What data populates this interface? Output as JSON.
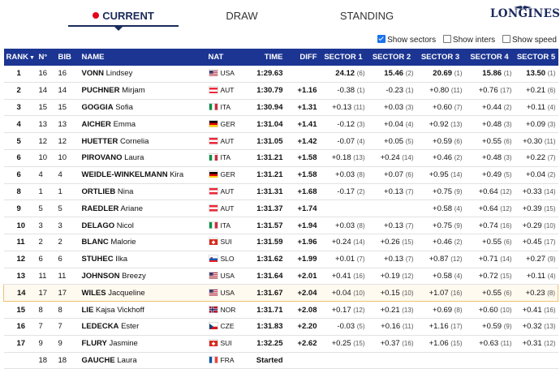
{
  "tabs": [
    {
      "label": "CURRENT",
      "active": true
    },
    {
      "label": "DRAW",
      "active": false
    },
    {
      "label": "STANDING",
      "active": false
    }
  ],
  "logo": "LONGINES",
  "options": {
    "show_sectors": {
      "label": "Show sectors",
      "checked": true
    },
    "show_inters": {
      "label": "Show inters",
      "checked": false
    },
    "show_speed": {
      "label": "Show speed",
      "checked": false
    }
  },
  "columns": [
    "RANK",
    "N°",
    "BIB",
    "NAME",
    "NAT",
    "TIME",
    "DIFF",
    "SECTOR 1",
    "SECTOR 2",
    "SECTOR 3",
    "SECTOR 4",
    "SECTOR 5"
  ],
  "rank_sort_icon": "caret-down-icon",
  "rows": [
    {
      "rank": "1",
      "n": "16",
      "bib": "16",
      "last": "VONN",
      "first": "Lindsey",
      "nat": "USA",
      "time": "1:29.63",
      "diff": "",
      "s": [
        [
          "24.12",
          "(6)"
        ],
        [
          "15.46",
          "(2)"
        ],
        [
          "20.69",
          "(1)"
        ],
        [
          "15.86",
          "(1)"
        ],
        [
          "13.50",
          "(1)"
        ]
      ]
    },
    {
      "rank": "2",
      "n": "14",
      "bib": "14",
      "last": "PUCHNER",
      "first": "Mirjam",
      "nat": "AUT",
      "time": "1:30.79",
      "diff": "+1.16",
      "s": [
        [
          "-0.38",
          "(1)"
        ],
        [
          "-0.23",
          "(1)"
        ],
        [
          "+0.80",
          "(11)"
        ],
        [
          "+0.76",
          "(17)"
        ],
        [
          "+0.21",
          "(6)"
        ]
      ]
    },
    {
      "rank": "3",
      "n": "15",
      "bib": "15",
      "last": "GOGGIA",
      "first": "Sofia",
      "nat": "ITA",
      "time": "1:30.94",
      "diff": "+1.31",
      "s": [
        [
          "+0.13",
          "(11)"
        ],
        [
          "+0.03",
          "(3)"
        ],
        [
          "+0.60",
          "(7)"
        ],
        [
          "+0.44",
          "(2)"
        ],
        [
          "+0.11",
          "(4)"
        ]
      ]
    },
    {
      "rank": "4",
      "n": "13",
      "bib": "13",
      "last": "AICHER",
      "first": "Emma",
      "nat": "GER",
      "time": "1:31.04",
      "diff": "+1.41",
      "s": [
        [
          "-0.12",
          "(3)"
        ],
        [
          "+0.04",
          "(4)"
        ],
        [
          "+0.92",
          "(13)"
        ],
        [
          "+0.48",
          "(3)"
        ],
        [
          "+0.09",
          "(3)"
        ]
      ]
    },
    {
      "rank": "5",
      "n": "12",
      "bib": "12",
      "last": "HUETTER",
      "first": "Cornelia",
      "nat": "AUT",
      "time": "1:31.05",
      "diff": "+1.42",
      "s": [
        [
          "-0.07",
          "(4)"
        ],
        [
          "+0.05",
          "(5)"
        ],
        [
          "+0.59",
          "(6)"
        ],
        [
          "+0.55",
          "(6)"
        ],
        [
          "+0.30",
          "(11)"
        ]
      ]
    },
    {
      "rank": "6",
      "n": "10",
      "bib": "10",
      "last": "PIROVANO",
      "first": "Laura",
      "nat": "ITA",
      "time": "1:31.21",
      "diff": "+1.58",
      "s": [
        [
          "+0.18",
          "(13)"
        ],
        [
          "+0.24",
          "(14)"
        ],
        [
          "+0.46",
          "(2)"
        ],
        [
          "+0.48",
          "(3)"
        ],
        [
          "+0.22",
          "(7)"
        ]
      ]
    },
    {
      "rank": "6",
      "n": "4",
      "bib": "4",
      "last": "WEIDLE-WINKELMANN",
      "first": "Kira",
      "nat": "GER",
      "time": "1:31.21",
      "diff": "+1.58",
      "s": [
        [
          "+0.03",
          "(8)"
        ],
        [
          "+0.07",
          "(6)"
        ],
        [
          "+0.95",
          "(14)"
        ],
        [
          "+0.49",
          "(5)"
        ],
        [
          "+0.04",
          "(2)"
        ]
      ]
    },
    {
      "rank": "8",
      "n": "1",
      "bib": "1",
      "last": "ORTLIEB",
      "first": "Nina",
      "nat": "AUT",
      "time": "1:31.31",
      "diff": "+1.68",
      "s": [
        [
          "-0.17",
          "(2)"
        ],
        [
          "+0.13",
          "(7)"
        ],
        [
          "+0.75",
          "(9)"
        ],
        [
          "+0.64",
          "(12)"
        ],
        [
          "+0.33",
          "(14)"
        ]
      ]
    },
    {
      "rank": "9",
      "n": "5",
      "bib": "5",
      "last": "RAEDLER",
      "first": "Ariane",
      "nat": "AUT",
      "time": "1:31.37",
      "diff": "+1.74",
      "s": [
        [
          "",
          ""
        ],
        [
          "",
          ""
        ],
        [
          "+0.58",
          "(4)"
        ],
        [
          "+0.64",
          "(12)"
        ],
        [
          "+0.39",
          "(15)"
        ]
      ]
    },
    {
      "rank": "10",
      "n": "3",
      "bib": "3",
      "last": "DELAGO",
      "first": "Nicol",
      "nat": "ITA",
      "time": "1:31.57",
      "diff": "+1.94",
      "s": [
        [
          "+0.03",
          "(8)"
        ],
        [
          "+0.13",
          "(7)"
        ],
        [
          "+0.75",
          "(9)"
        ],
        [
          "+0.74",
          "(16)"
        ],
        [
          "+0.29",
          "(10)"
        ]
      ]
    },
    {
      "rank": "11",
      "n": "2",
      "bib": "2",
      "last": "BLANC",
      "first": "Malorie",
      "nat": "SUI",
      "time": "1:31.59",
      "diff": "+1.96",
      "s": [
        [
          "+0.24",
          "(14)"
        ],
        [
          "+0.26",
          "(15)"
        ],
        [
          "+0.46",
          "(2)"
        ],
        [
          "+0.55",
          "(6)"
        ],
        [
          "+0.45",
          "(17)"
        ]
      ]
    },
    {
      "rank": "12",
      "n": "6",
      "bib": "6",
      "last": "STUHEC",
      "first": "Ilka",
      "nat": "SLO",
      "time": "1:31.62",
      "diff": "+1.99",
      "s": [
        [
          "+0.01",
          "(7)"
        ],
        [
          "+0.13",
          "(7)"
        ],
        [
          "+0.87",
          "(12)"
        ],
        [
          "+0.71",
          "(14)"
        ],
        [
          "+0.27",
          "(9)"
        ]
      ]
    },
    {
      "rank": "13",
      "n": "11",
      "bib": "11",
      "last": "JOHNSON",
      "first": "Breezy",
      "nat": "USA",
      "time": "1:31.64",
      "diff": "+2.01",
      "s": [
        [
          "+0.41",
          "(16)"
        ],
        [
          "+0.19",
          "(12)"
        ],
        [
          "+0.58",
          "(4)"
        ],
        [
          "+0.72",
          "(15)"
        ],
        [
          "+0.11",
          "(4)"
        ]
      ]
    },
    {
      "rank": "14",
      "n": "17",
      "bib": "17",
      "last": "WILES",
      "first": "Jacqueline",
      "nat": "USA",
      "time": "1:31.67",
      "diff": "+2.04",
      "highlight": true,
      "s": [
        [
          "+0.04",
          "(10)"
        ],
        [
          "+0.15",
          "(10)"
        ],
        [
          "+1.07",
          "(16)"
        ],
        [
          "+0.55",
          "(6)"
        ],
        [
          "+0.23",
          "(8)"
        ]
      ]
    },
    {
      "rank": "15",
      "n": "8",
      "bib": "8",
      "last": "LIE",
      "first": "Kajsa Vickhoff",
      "nat": "NOR",
      "time": "1:31.71",
      "diff": "+2.08",
      "s": [
        [
          "+0.17",
          "(12)"
        ],
        [
          "+0.21",
          "(13)"
        ],
        [
          "+0.69",
          "(8)"
        ],
        [
          "+0.60",
          "(10)"
        ],
        [
          "+0.41",
          "(16)"
        ]
      ]
    },
    {
      "rank": "16",
      "n": "7",
      "bib": "7",
      "last": "LEDECKA",
      "first": "Ester",
      "nat": "CZE",
      "time": "1:31.83",
      "diff": "+2.20",
      "s": [
        [
          "-0.03",
          "(5)"
        ],
        [
          "+0.16",
          "(11)"
        ],
        [
          "+1.16",
          "(17)"
        ],
        [
          "+0.59",
          "(9)"
        ],
        [
          "+0.32",
          "(13)"
        ]
      ]
    },
    {
      "rank": "17",
      "n": "9",
      "bib": "9",
      "last": "FLURY",
      "first": "Jasmine",
      "nat": "SUI",
      "time": "1:32.25",
      "diff": "+2.62",
      "s": [
        [
          "+0.25",
          "(15)"
        ],
        [
          "+0.37",
          "(16)"
        ],
        [
          "+1.06",
          "(15)"
        ],
        [
          "+0.63",
          "(11)"
        ],
        [
          "+0.31",
          "(12)"
        ]
      ]
    },
    {
      "rank": "",
      "n": "18",
      "bib": "18",
      "last": "GAUCHE",
      "first": "Laura",
      "nat": "FRA",
      "time": "Started",
      "diff": "",
      "s": [
        [
          "",
          ""
        ],
        [
          "",
          ""
        ],
        [
          "",
          ""
        ],
        [
          "",
          ""
        ],
        [
          "",
          ""
        ]
      ]
    }
  ],
  "colors": {
    "header_bg": "#1c3593",
    "accent_red": "#e3001b",
    "highlight_border": "#f0c070"
  }
}
